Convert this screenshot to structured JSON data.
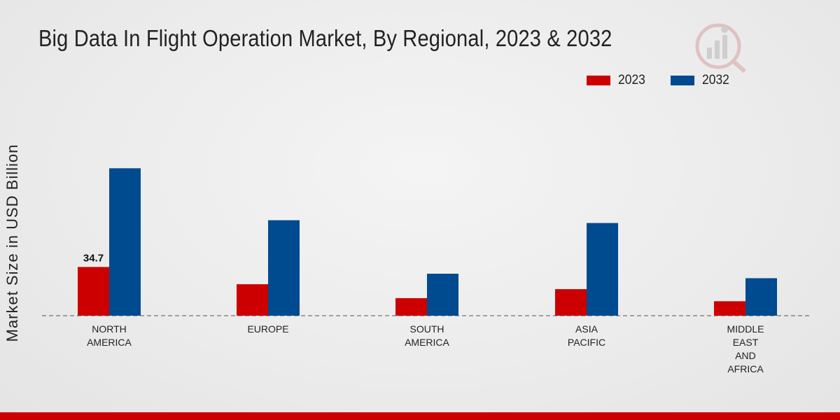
{
  "chart_data": {
    "type": "bar",
    "title": "Big Data In Flight Operation Market, By Regional, 2023 & 2032",
    "xlabel": "",
    "ylabel": "Market Size in USD Billion",
    "categories": [
      "NORTH\nAMERICA",
      "EUROPE",
      "SOUTH\nAMERICA",
      "ASIA\nPACIFIC",
      "MIDDLE\nEAST\nAND\nAFRICA"
    ],
    "series": [
      {
        "name": "2023",
        "color": "#cc0000",
        "values": [
          34.7,
          22.4,
          12.5,
          18.9,
          10.3
        ]
      },
      {
        "name": "2032",
        "color": "#004a8f",
        "values": [
          105.0,
          68.0,
          29.9,
          66.0,
          26.7
        ]
      }
    ],
    "data_labels": [
      {
        "series": "2023",
        "category_index": 0,
        "text": "34.7"
      }
    ],
    "ylim": [
      0,
      170
    ],
    "legend_position": "top-right",
    "grid": false
  },
  "accent_color": "#cc0000"
}
